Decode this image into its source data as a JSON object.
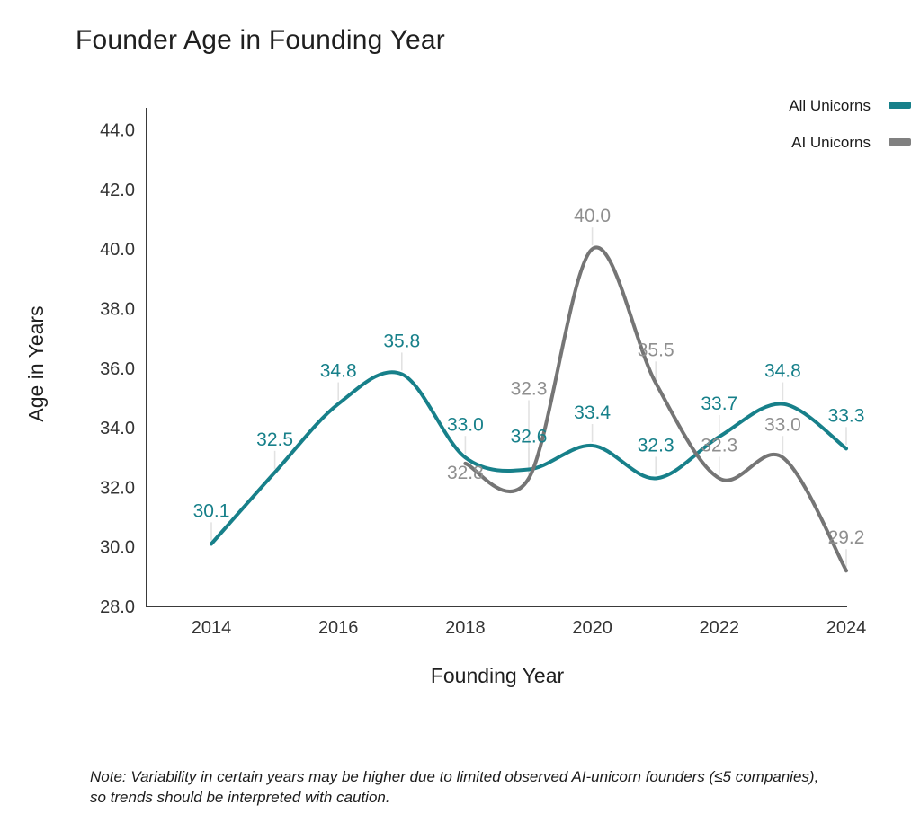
{
  "header": {
    "title": "Founder Age in Founding Year"
  },
  "note": {
    "text": "Note: Variability in certain years may be higher due to limited observed AI-unicorn founders (≤5 companies), so trends should be interpreted with caution."
  },
  "chart_data": {
    "type": "line",
    "title": "Founder Age in Founding Year",
    "xlabel": "Founding Year",
    "ylabel": "Age in Years",
    "xticks": [
      2014,
      2016,
      2018,
      2020,
      2022,
      2024
    ],
    "yticks": [
      28,
      30,
      32,
      34,
      36,
      38,
      40,
      42,
      44
    ],
    "ylim": [
      28,
      44.8
    ],
    "grid": false,
    "smoothing": "spline",
    "legend_position": "top-right",
    "series": [
      {
        "name": "All Unicorns",
        "color": "#17808a",
        "label_color": "#17808a",
        "legend_color": "#17808a",
        "x": [
          2014,
          2015,
          2016,
          2017,
          2018,
          2019,
          2020,
          2021,
          2022,
          2023,
          2024
        ],
        "values": [
          30.1,
          32.5,
          34.8,
          35.8,
          33.0,
          32.6,
          33.4,
          32.3,
          33.7,
          34.8,
          33.3
        ]
      },
      {
        "name": "AI Unicorns",
        "color": "#757575",
        "label_color": "#8f8f8f",
        "legend_color": "#808080",
        "x": [
          2018,
          2019,
          2020,
          2021,
          2022,
          2023,
          2024
        ],
        "values": [
          32.8,
          32.3,
          40.0,
          35.5,
          32.3,
          33.0,
          29.2
        ]
      }
    ],
    "label_dy_default": -37,
    "label_dy_overrides": [
      {},
      {
        "2018": 10,
        "2019": -100
      }
    ],
    "leader_color": "#e2e2e2",
    "axis_color": "#3a3a3a"
  }
}
